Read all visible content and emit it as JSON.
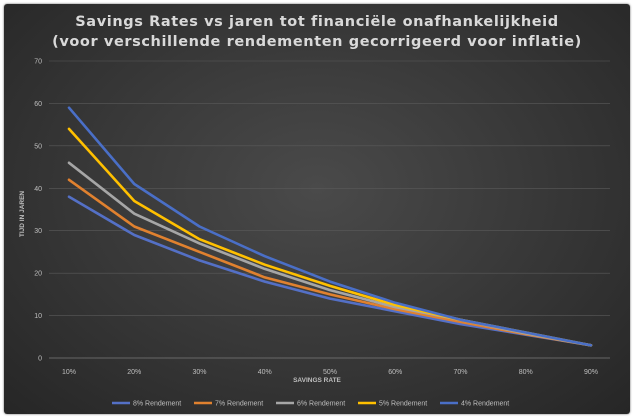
{
  "chart_data": {
    "type": "line",
    "title": "Savings Rates vs jaren tot financiële onafhankelijkheid",
    "subtitle": "(voor verschillende rendementen gecorrigeerd voor inflatie)",
    "xlabel": "SAVINGS RATE",
    "ylabel": "TIJD IN JAREN",
    "categories": [
      "10%",
      "20%",
      "30%",
      "40%",
      "50%",
      "60%",
      "70%",
      "80%",
      "90%"
    ],
    "ylim": [
      0,
      70
    ],
    "yticks": [
      "0",
      "10",
      "20",
      "30",
      "40",
      "50",
      "60",
      "70"
    ],
    "grid": true,
    "legend_position": "bottom",
    "series": [
      {
        "name": "8% Rendement",
        "color": "#5470c6",
        "values": [
          38,
          29,
          23,
          18,
          14,
          11,
          8,
          5.5,
          3
        ]
      },
      {
        "name": "7% Rendement",
        "color": "#e0812f",
        "values": [
          42,
          31,
          25,
          19,
          15,
          11.5,
          8.5,
          5.6,
          3
        ]
      },
      {
        "name": "6% Rendement",
        "color": "#a6a6a6",
        "values": [
          46,
          34,
          27,
          21,
          16,
          12,
          9,
          5.8,
          3
        ]
      },
      {
        "name": "5% Rendement",
        "color": "#ffc000",
        "values": [
          54,
          37,
          28,
          22,
          17,
          12.5,
          9,
          6,
          3
        ]
      },
      {
        "name": "4% Rendement",
        "color": "#4a6fc7",
        "values": [
          59,
          41,
          31,
          24,
          18,
          13,
          9,
          6,
          3
        ]
      }
    ]
  }
}
